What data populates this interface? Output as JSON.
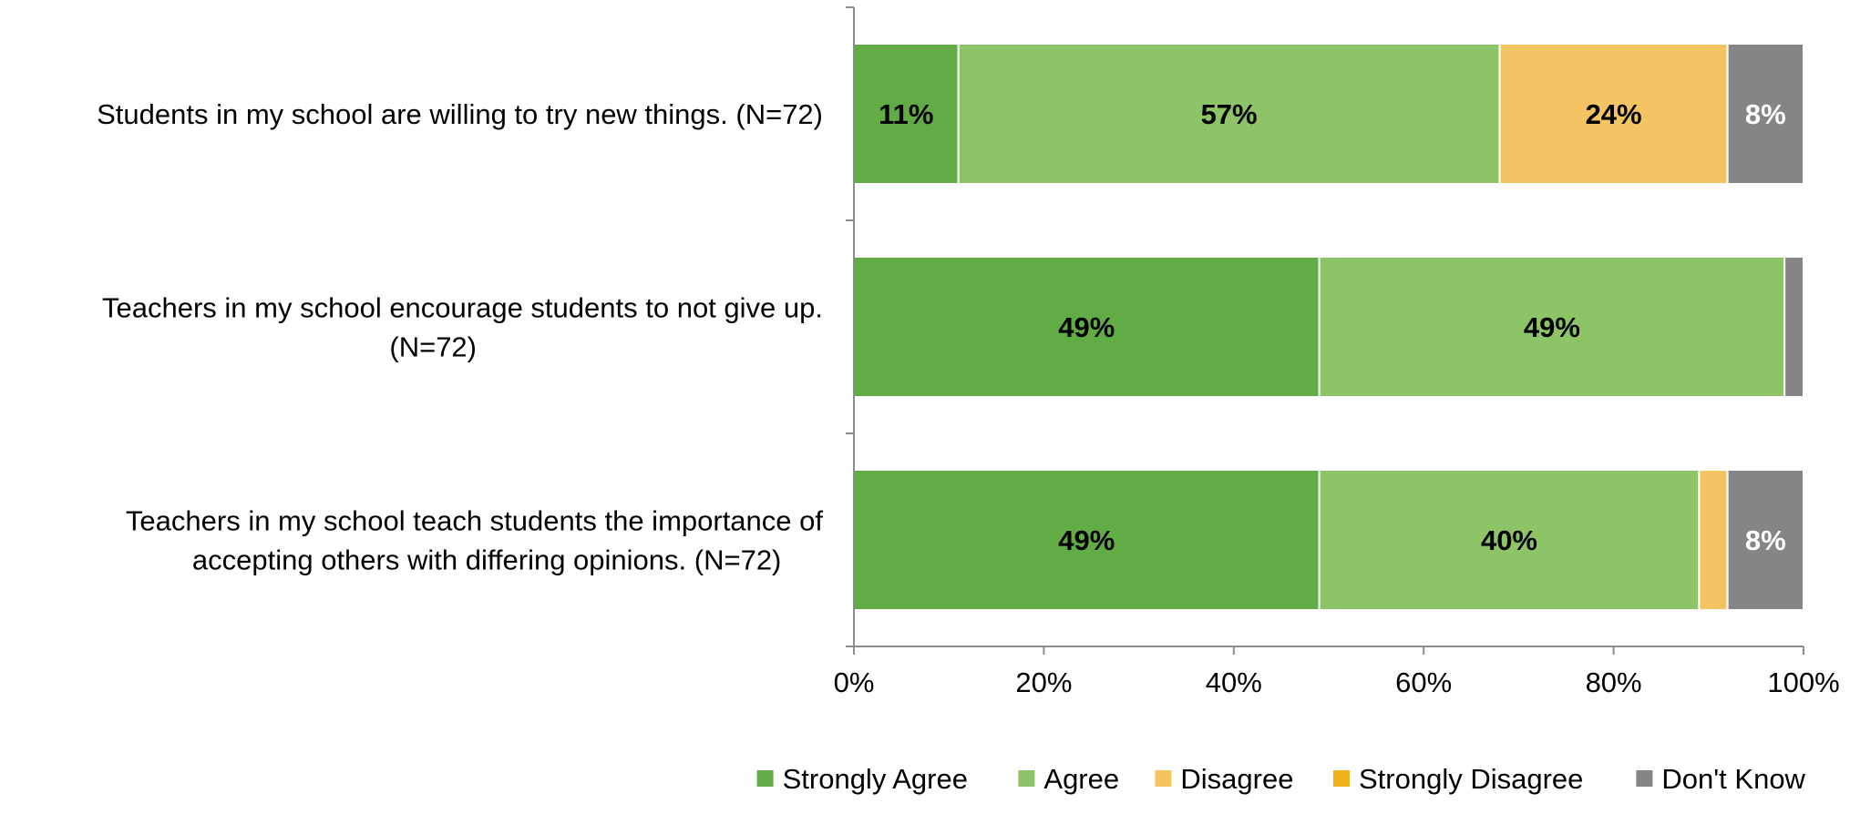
{
  "chart_data": {
    "type": "bar",
    "orientation": "horizontal",
    "stacked": true,
    "title": "",
    "xlabel": "",
    "ylabel": "",
    "xlim": [
      0,
      100
    ],
    "x_ticks": [
      "0%",
      "20%",
      "40%",
      "60%",
      "80%",
      "100%"
    ],
    "x_tick_values": [
      0,
      20,
      40,
      60,
      80,
      100
    ],
    "grid": false,
    "legend_position": "bottom",
    "categories": [
      [
        "Students in my school are willing to try new things. (N=72)"
      ],
      [
        "Teachers in my school encourage students to not give up.",
        "(N=72)"
      ],
      [
        "Teachers in my school teach students the importance of",
        "accepting others with differing opinions. (N=72)"
      ]
    ],
    "series": [
      {
        "name": "Strongly Agree",
        "color": "#62AC46",
        "values": [
          11,
          49,
          49
        ],
        "labels": [
          "11%",
          "49%",
          "49%"
        ],
        "label_color": "#000000"
      },
      {
        "name": "Agree",
        "color": "#8DC468",
        "values": [
          57,
          49,
          40
        ],
        "labels": [
          "57%",
          "49%",
          "40%"
        ],
        "label_color": "#000000"
      },
      {
        "name": "Disagree",
        "color": "#F5C462",
        "values": [
          24,
          0,
          3
        ],
        "labels": [
          "24%",
          "",
          ""
        ],
        "label_color": "#000000"
      },
      {
        "name": "Strongly Disagree",
        "color": "#F2B21E",
        "values": [
          0,
          0,
          0
        ],
        "labels": [
          "",
          "",
          ""
        ],
        "label_color": "#000000"
      },
      {
        "name": "Don't Know",
        "color": "#858585",
        "values": [
          8,
          2,
          8
        ],
        "labels": [
          "8%",
          "",
          "8%"
        ],
        "label_color": "#ffffff"
      }
    ]
  }
}
